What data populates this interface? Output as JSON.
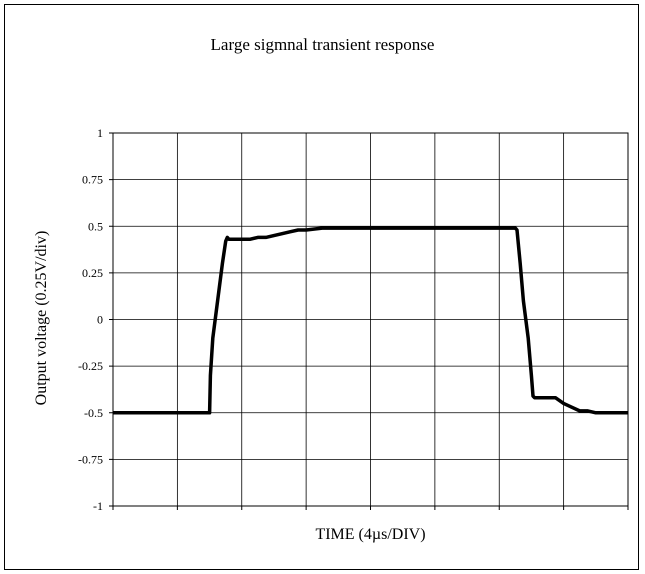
{
  "chart_data": {
    "type": "line",
    "title": "Large sigmnal transient response",
    "xlabel": "TIME (4µs/DIV)",
    "ylabel": "Output voltage (0.25V/div)",
    "ylim": [
      -1,
      1
    ],
    "xlim": [
      0,
      32
    ],
    "x_divisions": 8,
    "y_ticks": [
      1,
      0.75,
      0.5,
      0.25,
      0,
      -0.25,
      -0.5,
      -0.75,
      -1
    ],
    "y_tick_labels": [
      "1",
      "0.75",
      "0.5",
      "0.25",
      "0",
      "-0.25",
      "-0.5",
      "-0.75",
      "-1"
    ],
    "grid": true,
    "series": [
      {
        "line_color": "#000000",
        "x": [
          0,
          6.0,
          6.05,
          6.2,
          6.5,
          6.8,
          7.0,
          7.1,
          7.2,
          8.5,
          9.0,
          9.5,
          10.0,
          10.5,
          11.0,
          11.5,
          12.0,
          13.0,
          15.0,
          20.0,
          25.0,
          25.1,
          25.3,
          25.5,
          25.8,
          26.0,
          26.1,
          26.2,
          27.5,
          28.0,
          28.5,
          29.0,
          29.5,
          30.0,
          32.0
        ],
        "y": [
          -0.5,
          -0.5,
          -0.3,
          -0.1,
          0.1,
          0.3,
          0.42,
          0.44,
          0.43,
          0.43,
          0.44,
          0.44,
          0.45,
          0.46,
          0.47,
          0.48,
          0.48,
          0.49,
          0.49,
          0.49,
          0.49,
          0.48,
          0.3,
          0.1,
          -0.1,
          -0.3,
          -0.41,
          -0.42,
          -0.42,
          -0.45,
          -0.47,
          -0.49,
          -0.49,
          -0.5,
          -0.5
        ]
      }
    ]
  }
}
